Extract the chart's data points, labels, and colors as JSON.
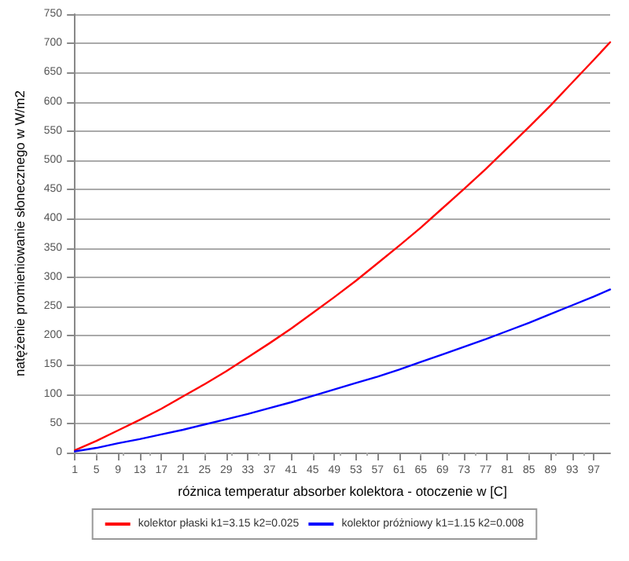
{
  "chart_data": {
    "type": "line",
    "xlabel": "różnica temperatur absorber kolektora - otoczenie w [C]",
    "ylabel": "natężenie promieniowanie słonecznego w W/m2",
    "x": [
      1,
      5,
      9,
      13,
      17,
      21,
      25,
      29,
      33,
      37,
      41,
      45,
      49,
      53,
      57,
      61,
      65,
      69,
      73,
      77,
      81,
      85,
      89,
      93,
      97,
      100
    ],
    "series": [
      {
        "name": "kolektor płaski k1=3.15 k2=0.025",
        "color": "#ff0000",
        "values": [
          4,
          20,
          38,
          56,
          75,
          96,
          117,
          139,
          163,
          187,
          212,
          239,
          266,
          294,
          324,
          354,
          385,
          418,
          451,
          485,
          521,
          557,
          594,
          633,
          672,
          702
        ]
      },
      {
        "name": "kolektor próżniowy k1=1.15 k2=0.008",
        "color": "#0000ff",
        "values": [
          2,
          8,
          16,
          23,
          31,
          39,
          48,
          57,
          66,
          76,
          86,
          97,
          108,
          119,
          130,
          142,
          155,
          168,
          181,
          194,
          208,
          222,
          237,
          252,
          267,
          279
        ]
      }
    ],
    "xlim": [
      1,
      100
    ],
    "xticks": [
      1,
      5,
      9,
      13,
      17,
      21,
      25,
      29,
      33,
      37,
      41,
      45,
      49,
      53,
      57,
      61,
      65,
      69,
      73,
      77,
      81,
      85,
      89,
      93,
      97
    ],
    "ylim": [
      0,
      750
    ],
    "yticks": [
      0,
      50,
      100,
      150,
      200,
      250,
      300,
      350,
      400,
      450,
      500,
      550,
      600,
      650,
      700,
      750
    ],
    "grid": "y",
    "legend": "bottom",
    "marker": "none",
    "line_style": "solid"
  }
}
